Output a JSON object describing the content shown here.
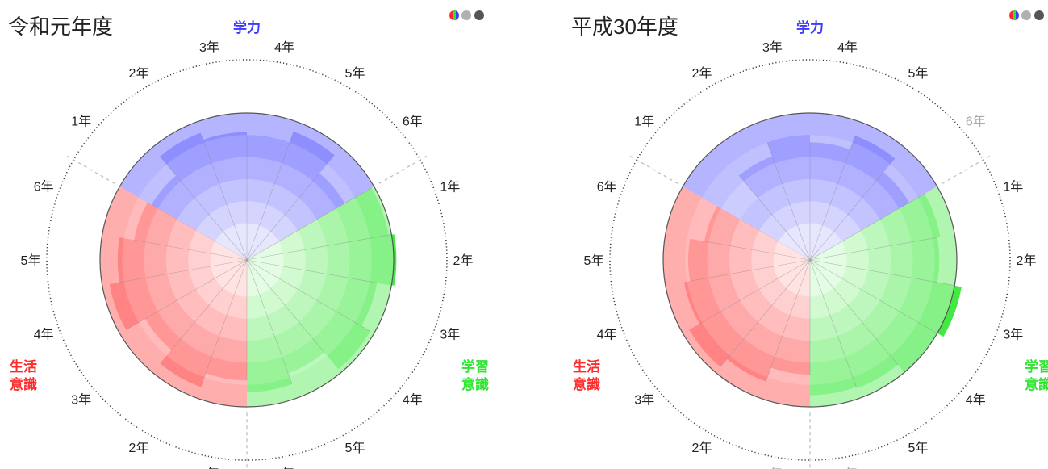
{
  "chart_data": [
    {
      "type": "polar-bar",
      "title": "令和元年度",
      "reference_value": 0.8,
      "sectors": [
        {
          "label": "学力",
          "color": "#3c3cff",
          "ticks": [
            "1年",
            "2年",
            "3年",
            "4年",
            "5年",
            "6年"
          ],
          "values": [
            0.75,
            0.92,
            0.87,
            0.85,
            0.93,
            0.77
          ]
        },
        {
          "label": "学習\n意識",
          "color": "#2ee62e",
          "ticks": [
            "1年",
            "2年",
            "3年",
            "4年",
            "5年",
            "6年"
          ],
          "values": [
            0.98,
            1.02,
            0.9,
            0.97,
            0.82,
            0.9
          ]
        },
        {
          "label": "生活\n意識",
          "color": "#ff2a2a",
          "ticks": [
            "1年",
            "2年",
            "3年",
            "4年",
            "5年",
            "6年"
          ],
          "values": [
            0.82,
            0.92,
            0.8,
            0.95,
            0.88,
            0.78
          ]
        }
      ]
    },
    {
      "type": "polar-bar",
      "title": "平成30年度",
      "reference_value": 0.8,
      "sectors": [
        {
          "label": "学力",
          "color": "#3c3cff",
          "ticks": [
            "1年",
            "2年",
            "3年",
            "4年",
            "5年",
            "6年"
          ],
          "values": [
            0.55,
            0.75,
            0.85,
            0.8,
            0.9,
            0.78
          ]
        },
        {
          "label": "学習\n意識",
          "color": "#2ee62e",
          "ticks": [
            "1年",
            "2年",
            "3年",
            "4年",
            "5年",
            "6年"
          ],
          "values": [
            0.9,
            0.88,
            1.05,
            1.0,
            0.93,
            0.92
          ]
        },
        {
          "label": "生活\n意識",
          "color": "#ff2a2a",
          "ticks": [
            "1年",
            "2年",
            "3年",
            "4年",
            "5年",
            "6年"
          ],
          "values": [
            0.78,
            0.88,
            0.95,
            0.87,
            0.83,
            0.73
          ]
        }
      ]
    }
  ],
  "legend_dot_colors": [
    "#b0b0b0",
    "#555555"
  ]
}
